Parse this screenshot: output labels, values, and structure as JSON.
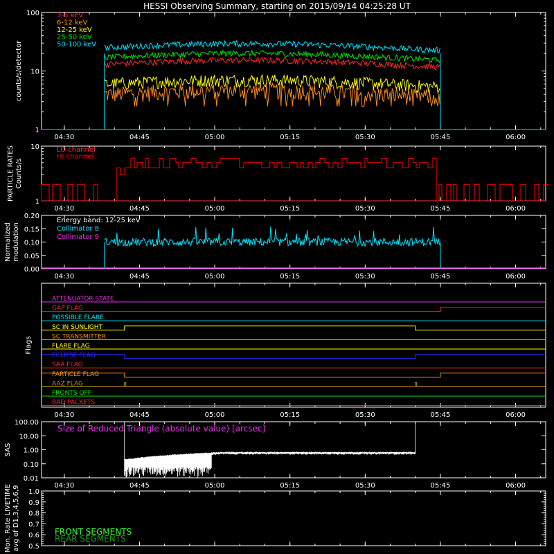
{
  "title": "HESSI Observing Summary, starting on 2015/09/14 04:25:28 UT",
  "time_axis": {
    "start": "04:25:28",
    "end": "06:06",
    "ticks": [
      "04:30",
      "04:45",
      "05:00",
      "05:15",
      "05:30",
      "05:45",
      "06:00"
    ]
  },
  "colors": {
    "background": "#000000",
    "axes": "#ffffff",
    "e3_6": "#ff2a2a",
    "e6_12": "#ff8c1a",
    "e12_25": "#ffff00",
    "e25_50": "#00e600",
    "e50_100": "#00e5ff",
    "particle_lo": "#ff3333",
    "particle_hi": "#ff0000",
    "collimator8": "#00e5ff",
    "collimator9": "#e633e6",
    "sas": "#ffffff",
    "front_segments": "#33ff33",
    "rear_segments": "#1a9a1a"
  },
  "panels": [
    {
      "name": "count-rates",
      "ylabel": "counts/s/detector",
      "chart_data": {
        "type": "line",
        "yscale": "log",
        "ylim": [
          1,
          100
        ],
        "yticks": [
          "100",
          "10",
          "1"
        ],
        "data_window": [
          "04:38",
          "05:45"
        ],
        "series": [
          {
            "name": "3-6 keV",
            "color": "#ff2a2a",
            "level": 13
          },
          {
            "name": "6-12 keV",
            "color": "#ff8c1a",
            "level": 4
          },
          {
            "name": "12-25 keV",
            "color": "#ffff00",
            "level": 6
          },
          {
            "name": "25-50 keV",
            "color": "#00e600",
            "level": 17
          },
          {
            "name": "50-100 keV",
            "color": "#00e5ff",
            "level": 25
          }
        ]
      }
    },
    {
      "name": "particle-rates",
      "ylabel": "PARTICLE RATES",
      "ylabel2": "Counts/s",
      "chart_data": {
        "type": "line",
        "yscale": "log",
        "ylim": [
          1,
          10
        ],
        "yticks": [
          "10",
          "1"
        ],
        "series": [
          {
            "name": "LO channel",
            "color": "#ff3333"
          },
          {
            "name": "HI channel",
            "color": "#ff0000"
          }
        ]
      }
    },
    {
      "name": "modulation",
      "ylabel": "Normalized",
      "ylabel2": "modulation",
      "chart_data": {
        "type": "line",
        "ylim": [
          0,
          0.2
        ],
        "yticks": [
          "0.20",
          "0.15",
          "0.10",
          "0.05",
          "0.00"
        ],
        "energy_band": "Energy band: 12-25 keV",
        "series": [
          {
            "name": "Collimator 8",
            "color": "#00e5ff",
            "level": 0.1
          },
          {
            "name": "Collimator 9",
            "color": "#e633e6",
            "level": 0.0
          }
        ]
      }
    },
    {
      "name": "flags",
      "ylabel": "Flags",
      "flags": [
        {
          "name": "ATTENUATOR STATE",
          "color": "#e633e6"
        },
        {
          "name": "GAP FLAG",
          "color": "#ff2a2a"
        },
        {
          "name": "POSSIBLE FLARE",
          "color": "#00e5ff"
        },
        {
          "name": "SC IN SUNLIGHT",
          "color": "#ffff00"
        },
        {
          "name": "SC TRANSMITTER",
          "color": "#ff8c1a"
        },
        {
          "name": "FLARE FLAG",
          "color": "#ffff00"
        },
        {
          "name": "ECLIPSE FLAG",
          "color": "#2a2aff"
        },
        {
          "name": "SAA FLAG",
          "color": "#ff2a2a"
        },
        {
          "name": "PARTICLE FLAG",
          "color": "#ff8c1a"
        },
        {
          "name": "AAZ FLAG",
          "color": "#b38f1a"
        },
        {
          "name": "FRONTS OFF",
          "color": "#00e600"
        },
        {
          "name": "BAD PACKETS",
          "color": "#ff2a2a"
        }
      ]
    },
    {
      "name": "sas",
      "ylabel": "SAS",
      "chart_data": {
        "type": "line",
        "yscale": "log",
        "ylim": [
          0.01,
          100
        ],
        "yticks": [
          "100.00",
          "10.00",
          "1.00",
          "0.10",
          "0.01"
        ],
        "label": "Size of Reduced Triangle (absolute value) [arcsec]"
      }
    },
    {
      "name": "livetime",
      "ylabel": "Mon. Rate LIVETIME",
      "ylabel2": "avg of D1,3,4,5,6,9",
      "chart_data": {
        "type": "line",
        "ylim": [
          0.5,
          1.0
        ],
        "yticks": [
          "1.0",
          "0.9",
          "0.8",
          "0.7",
          "0.6",
          "0.5"
        ],
        "series": [
          {
            "name": "FRONT SEGMENTS",
            "color": "#33ff33"
          },
          {
            "name": "REAR SEGMENTS",
            "color": "#1a9a1a"
          }
        ]
      }
    }
  ]
}
